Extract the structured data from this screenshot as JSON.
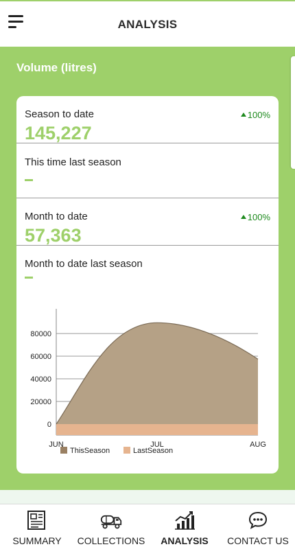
{
  "header": {
    "title": "ANALYSIS",
    "menu_icon": "hamburger-menu-icon"
  },
  "section": {
    "title": "Volume (litres)"
  },
  "stats": [
    {
      "label": "Season to date",
      "value": "145,227",
      "change": "100%",
      "direction": "up"
    },
    {
      "label": "This time last season",
      "value": "",
      "change": "",
      "direction": ""
    },
    {
      "label": "Month to date",
      "value": "57,363",
      "change": "100%",
      "direction": "up"
    },
    {
      "label": "Month to date last season",
      "value": "",
      "change": "",
      "direction": ""
    }
  ],
  "chart_data": {
    "type": "area",
    "categories": [
      "JUN",
      "JUL",
      "AUG"
    ],
    "series": [
      {
        "name": "ThisSeason",
        "values": [
          0,
          89500,
          57363
        ],
        "color": "#b5a186"
      },
      {
        "name": "LastSeason",
        "values": [
          0,
          0,
          0
        ],
        "color": "#e6b48f"
      }
    ],
    "yticks": [
      0,
      20000,
      40000,
      60000,
      80000
    ],
    "ylim": [
      0,
      90000
    ],
    "grid": true,
    "legend_position": "bottom-left"
  },
  "nav": {
    "items": [
      {
        "label": "SUMMARY",
        "icon": "newspaper-icon",
        "active": false
      },
      {
        "label": "COLLECTIONS",
        "icon": "tanker-truck-icon",
        "active": false
      },
      {
        "label": "ANALYSIS",
        "icon": "bar-chart-trend-icon",
        "active": true
      },
      {
        "label": "CONTACT US",
        "icon": "chat-bubble-icon",
        "active": false
      }
    ]
  },
  "colors": {
    "accent": "#9ed06a",
    "positive": "#1e8a1e"
  }
}
